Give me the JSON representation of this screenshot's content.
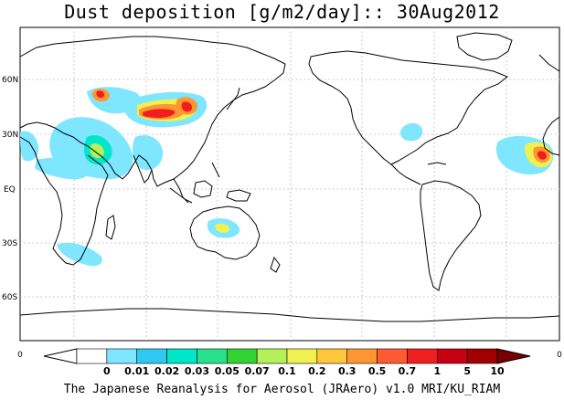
{
  "title": "Dust deposition [g/m2/day]:: 30Aug2012",
  "latitude_labels": [
    "60N",
    "30N",
    "EQ",
    "30S",
    "60S"
  ],
  "colorbar": {
    "end_labels": [
      "0",
      "0"
    ],
    "tick_labels": [
      "0",
      "0.01",
      "0.02",
      "0.03",
      "0.05",
      "0.07",
      "0.1",
      "0.2",
      "0.3",
      "0.5",
      "0.7",
      "1",
      "5",
      "10"
    ],
    "colors": [
      "#ffffff",
      "#ffffff",
      "#7fe6ff",
      "#2fc8f0",
      "#00e6c8",
      "#28e08c",
      "#32d232",
      "#b4f05a",
      "#f0f050",
      "#ffc83c",
      "#ff9632",
      "#ff5a32",
      "#f01e1e",
      "#c80014",
      "#a00000",
      "#780000"
    ]
  },
  "dust_colors": {
    "very_low": "#7fe6ff",
    "low": "#00e6c8",
    "moderate": "#b4f05a",
    "medium": "#f0f050",
    "high": "#ff9632",
    "very_high": "#f01e1e",
    "extreme": "#a00000"
  },
  "credit": "The Japanese Reanalysis for Aerosol (JRAero) v1.0 MRI/KU_RIAM"
}
